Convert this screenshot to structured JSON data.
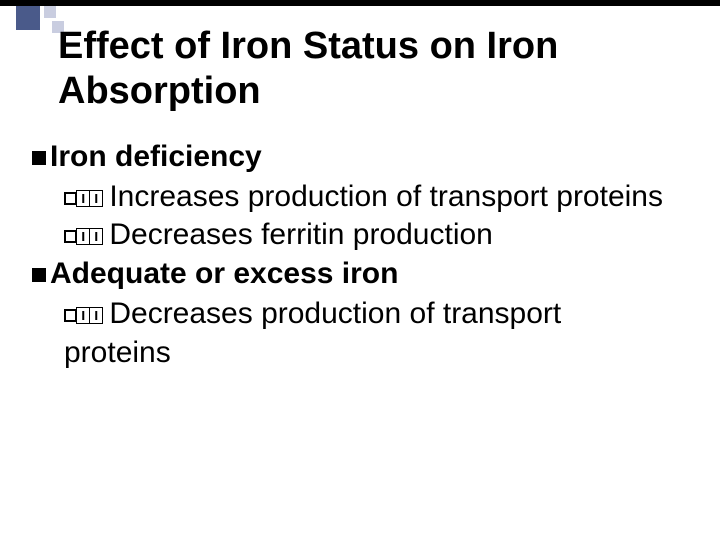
{
  "colors": {
    "topBar": "#000000",
    "decoBig": "#4a5a8a",
    "decoSmall": "#c9cde0",
    "background": "#ffffff",
    "text": "#000000"
  },
  "fonts": {
    "family": "Arial",
    "titleSize": 38,
    "bodySize": 30
  },
  "title": "Effect of Iron Status on Iron Absorption",
  "sections": [
    {
      "heading": "Iron deficiency",
      "items": [
        "Increases production of transport proteins",
        "Decreases ferritin production"
      ]
    },
    {
      "heading": "Adequate or excess iron",
      "items": [
        "Decreases production of transport proteins"
      ]
    }
  ]
}
